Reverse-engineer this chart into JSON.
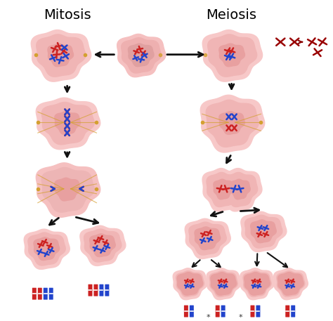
{
  "title_mitosis": "Mitosis",
  "title_meiosis": "Meiosis",
  "bg_color": "#ffffff",
  "cell_outer_color": "#f5c5c5",
  "cell_outer_edge": "#e8a8a8",
  "cell_inner_color": "#f0b0b0",
  "cell_inner_edge": "#d89090",
  "nucleus_color": "#e8b8b8",
  "nucleus_edge": "#c89090",
  "chr_red": "#cc2222",
  "chr_blue": "#2244cc",
  "chr_darkred": "#990000",
  "spindle_color": "#d4a030",
  "arrow_color": "#111111",
  "title_fontsize": 14,
  "star_color": "#d4a030"
}
